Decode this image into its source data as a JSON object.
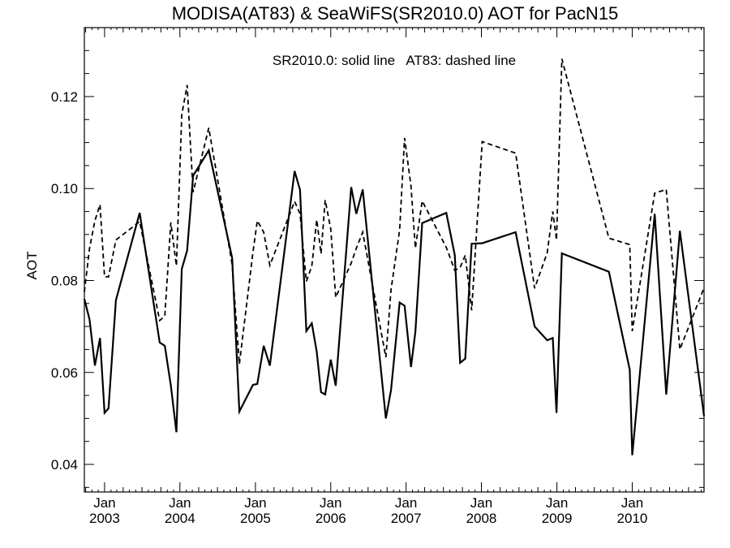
{
  "chart_data": {
    "type": "line",
    "title": "MODISA(AT83) & SeaWiFS(SR2010.0)  AOT for PacN15",
    "annotation": "SR2010.0: solid line   AT83: dashed line",
    "xlabel": "",
    "ylabel": "AOT",
    "xlim": [
      "2002-09-25",
      "2010-12-15"
    ],
    "ylim": [
      0.034,
      0.135
    ],
    "x_ticks": [
      {
        "date": "2003-01-01",
        "label": [
          "Jan",
          "2003"
        ]
      },
      {
        "date": "2004-01-01",
        "label": [
          "Jan",
          "2004"
        ]
      },
      {
        "date": "2005-01-01",
        "label": [
          "Jan",
          "2005"
        ]
      },
      {
        "date": "2006-01-01",
        "label": [
          "Jan",
          "2006"
        ]
      },
      {
        "date": "2007-01-01",
        "label": [
          "Jan",
          "2007"
        ]
      },
      {
        "date": "2008-01-01",
        "label": [
          "Jan",
          "2008"
        ]
      },
      {
        "date": "2009-01-01",
        "label": [
          "Jan",
          "2009"
        ]
      },
      {
        "date": "2010-01-01",
        "label": [
          "Jan",
          "2010"
        ]
      }
    ],
    "y_ticks": [
      0.04,
      0.06,
      0.08,
      0.1,
      0.12
    ],
    "y_tick_labels": [
      "0.04",
      "0.06",
      "0.08",
      "0.10",
      "0.12"
    ],
    "series": [
      {
        "name": "SR2010.0",
        "style": "solid",
        "x": [
          "2002-09-25",
          "2002-10-20",
          "2002-11-15",
          "2002-12-10",
          "2003-01-01",
          "2003-01-20",
          "2003-02-25",
          "2003-06-20",
          "2003-09-25",
          "2003-10-20",
          "2003-11-18",
          "2003-12-15",
          "2004-01-10",
          "2004-02-05",
          "2004-03-05",
          "2004-05-20",
          "2004-09-10",
          "2004-10-15",
          "2004-12-20",
          "2005-01-10",
          "2005-02-10",
          "2005-03-12",
          "2005-07-10",
          "2005-08-05",
          "2005-09-05",
          "2005-10-01",
          "2005-10-25",
          "2005-11-15",
          "2005-12-05",
          "2006-01-01",
          "2006-01-25",
          "2006-04-10",
          "2006-05-05",
          "2006-06-05",
          "2006-09-25",
          "2006-10-20",
          "2006-12-01",
          "2006-12-25",
          "2007-01-25",
          "2007-02-15",
          "2007-03-20",
          "2007-07-15",
          "2007-08-25",
          "2007-09-20",
          "2007-10-15",
          "2007-11-15",
          "2008-01-05",
          "2008-06-15",
          "2008-09-15",
          "2008-11-15",
          "2008-12-12",
          "2008-12-30",
          "2009-01-25",
          "2009-09-10",
          "2009-12-20",
          "2010-01-01",
          "2010-04-20",
          "2010-06-15",
          "2010-08-20",
          "2010-12-15"
        ],
        "values": [
          0.076,
          0.0715,
          0.0615,
          0.0675,
          0.0512,
          0.0522,
          0.0757,
          0.0947,
          0.0665,
          0.0658,
          0.0572,
          0.047,
          0.0825,
          0.0865,
          0.1028,
          0.1083,
          0.0849,
          0.0515,
          0.0573,
          0.0575,
          0.0658,
          0.0615,
          0.1038,
          0.0997,
          0.069,
          0.0707,
          0.0645,
          0.0557,
          0.0552,
          0.0628,
          0.0571,
          0.1003,
          0.0945,
          0.0998,
          0.05,
          0.0562,
          0.0752,
          0.0745,
          0.0612,
          0.0688,
          0.0925,
          0.0947,
          0.0855,
          0.0621,
          0.063,
          0.088,
          0.0881,
          0.0905,
          0.07,
          0.067,
          0.0675,
          0.0512,
          0.0859,
          0.0819,
          0.0606,
          0.042,
          0.0945,
          0.0552,
          0.0908,
          0.0505
        ]
      },
      {
        "name": "AT83",
        "style": "dashed",
        "x": [
          "2002-09-25",
          "2002-10-20",
          "2002-11-15",
          "2002-12-10",
          "2003-01-01",
          "2003-01-20",
          "2003-02-25",
          "2003-06-20",
          "2003-09-25",
          "2003-10-20",
          "2003-11-18",
          "2003-12-15",
          "2004-01-10",
          "2004-02-05",
          "2004-03-05",
          "2004-05-20",
          "2004-09-10",
          "2004-10-15",
          "2004-12-20",
          "2005-01-10",
          "2005-02-10",
          "2005-03-12",
          "2005-07-10",
          "2005-08-05",
          "2005-09-05",
          "2005-10-01",
          "2005-10-25",
          "2005-11-15",
          "2005-12-05",
          "2006-01-01",
          "2006-01-25",
          "2006-04-10",
          "2006-05-05",
          "2006-06-05",
          "2006-09-25",
          "2006-10-20",
          "2006-12-01",
          "2006-12-25",
          "2007-01-25",
          "2007-02-15",
          "2007-03-20",
          "2007-07-15",
          "2007-08-25",
          "2007-09-20",
          "2007-10-15",
          "2007-11-15",
          "2008-01-05",
          "2008-06-15",
          "2008-09-15",
          "2008-11-15",
          "2008-12-12",
          "2008-12-30",
          "2009-01-25",
          "2009-09-10",
          "2009-12-20",
          "2010-01-01",
          "2010-04-20",
          "2010-06-15",
          "2010-08-20",
          "2010-12-15"
        ],
        "values": [
          0.0775,
          0.087,
          0.093,
          0.0965,
          0.0808,
          0.0808,
          0.0888,
          0.0928,
          0.0713,
          0.0723,
          0.0926,
          0.0832,
          0.116,
          0.1225,
          0.0992,
          0.1132,
          0.0835,
          0.0618,
          0.0862,
          0.093,
          0.0905,
          0.0833,
          0.0972,
          0.0945,
          0.0798,
          0.0831,
          0.0932,
          0.0858,
          0.0975,
          0.0912,
          0.0763,
          0.0838,
          0.087,
          0.0905,
          0.0633,
          0.078,
          0.091,
          0.111,
          0.1005,
          0.087,
          0.0973,
          0.0872,
          0.0822,
          0.0828,
          0.0855,
          0.0735,
          0.1102,
          0.1077,
          0.0783,
          0.086,
          0.095,
          0.0888,
          0.1282,
          0.0892,
          0.0878,
          0.069,
          0.099,
          0.0998,
          0.065,
          0.0784
        ]
      }
    ]
  }
}
